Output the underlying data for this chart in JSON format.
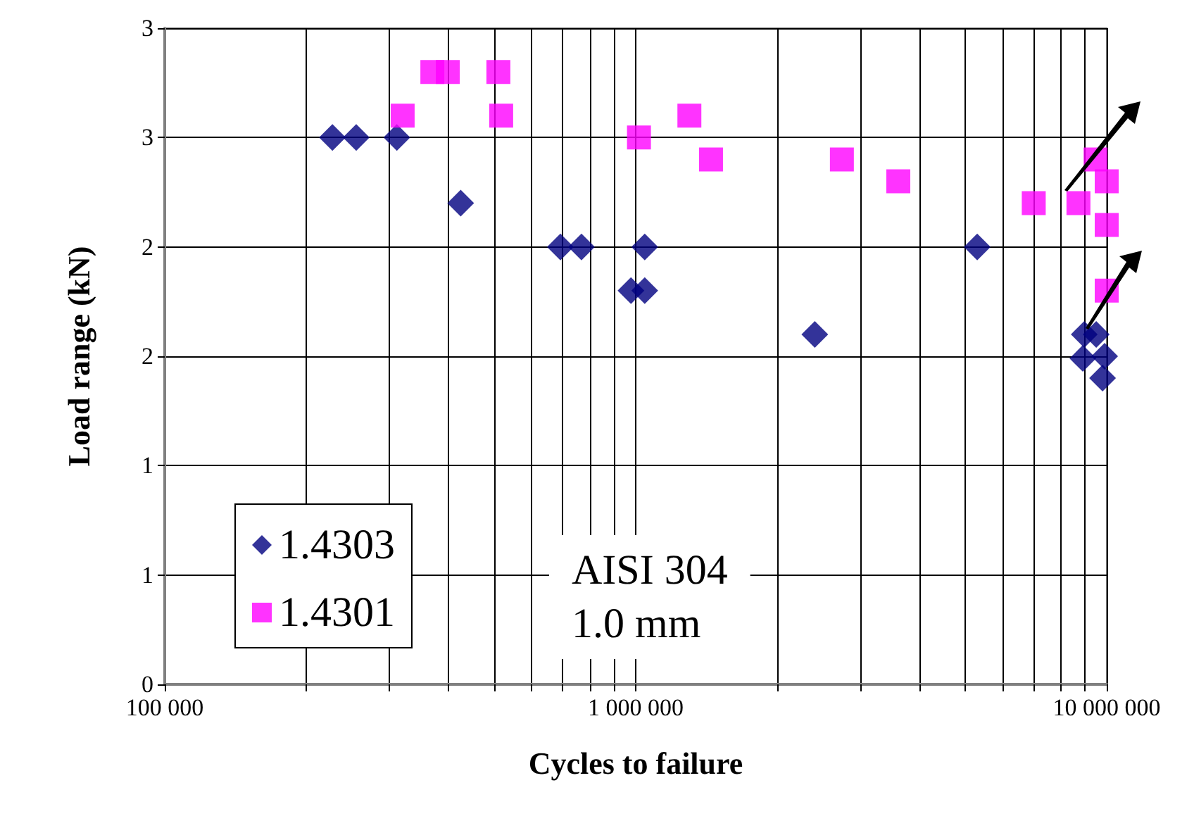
{
  "chart_data": {
    "type": "scatter",
    "xlabel": "Cycles to failure",
    "ylabel": "Load range (kN)",
    "log": "x",
    "grid": true,
    "legend": "bottom left",
    "xlim": [
      100000,
      10000000
    ],
    "ylim": [
      0,
      3
    ],
    "xticks": [
      {
        "value": 100000,
        "label": "100 000"
      },
      {
        "value": 200000,
        "label": null
      },
      {
        "value": 300000,
        "label": null
      },
      {
        "value": 400000,
        "label": null
      },
      {
        "value": 500000,
        "label": null
      },
      {
        "value": 600000,
        "label": null
      },
      {
        "value": 700000,
        "label": null
      },
      {
        "value": 800000,
        "label": null
      },
      {
        "value": 900000,
        "label": null
      },
      {
        "value": 1000000,
        "label": "1 000 000"
      },
      {
        "value": 2000000,
        "label": null
      },
      {
        "value": 3000000,
        "label": null
      },
      {
        "value": 4000000,
        "label": null
      },
      {
        "value": 5000000,
        "label": null
      },
      {
        "value": 6000000,
        "label": null
      },
      {
        "value": 7000000,
        "label": null
      },
      {
        "value": 8000000,
        "label": null
      },
      {
        "value": 9000000,
        "label": null
      },
      {
        "value": 10000000,
        "label": "10 000 000"
      }
    ],
    "yticks": [
      {
        "value": 0,
        "label": "0"
      },
      {
        "value": 0.5,
        "label": "1"
      },
      {
        "value": 1,
        "label": "1"
      },
      {
        "value": 1.5,
        "label": "2"
      },
      {
        "value": 2,
        "label": "2"
      },
      {
        "value": 2.5,
        "label": "3"
      },
      {
        "value": 3,
        "label": "3"
      }
    ],
    "annotations": [
      "AISI 304\n1.0 mm"
    ],
    "series": [
      {
        "name": "1.4303",
        "color": "#000080",
        "marker": "diamond",
        "x": [
          227000,
          255000,
          311000,
          425000,
          692000,
          767000,
          1045000,
          977000,
          1045000,
          2400000,
          5310000,
          8960000,
          9500000,
          8900000,
          9900000,
          9800000
        ],
        "values": [
          2.5,
          2.5,
          2.5,
          2.2,
          2.0,
          2.0,
          2.0,
          1.8,
          1.8,
          1.6,
          2.0,
          1.6,
          1.6,
          1.49,
          1.5,
          1.4
        ]
      },
      {
        "name": "1.4301",
        "color": "#ff00ff",
        "marker": "square",
        "x": [
          320000,
          370000,
          399000,
          511000,
          518000,
          1016000,
          1300000,
          1445000,
          2740000,
          3610000,
          7000000,
          8710000,
          9470000,
          10000000,
          10000000,
          10000000
        ],
        "values": [
          2.6,
          2.8,
          2.8,
          2.8,
          2.6,
          2.5,
          2.6,
          2.4,
          2.4,
          2.3,
          2.2,
          2.2,
          2.4,
          2.3,
          2.1,
          1.8
        ]
      }
    ]
  }
}
